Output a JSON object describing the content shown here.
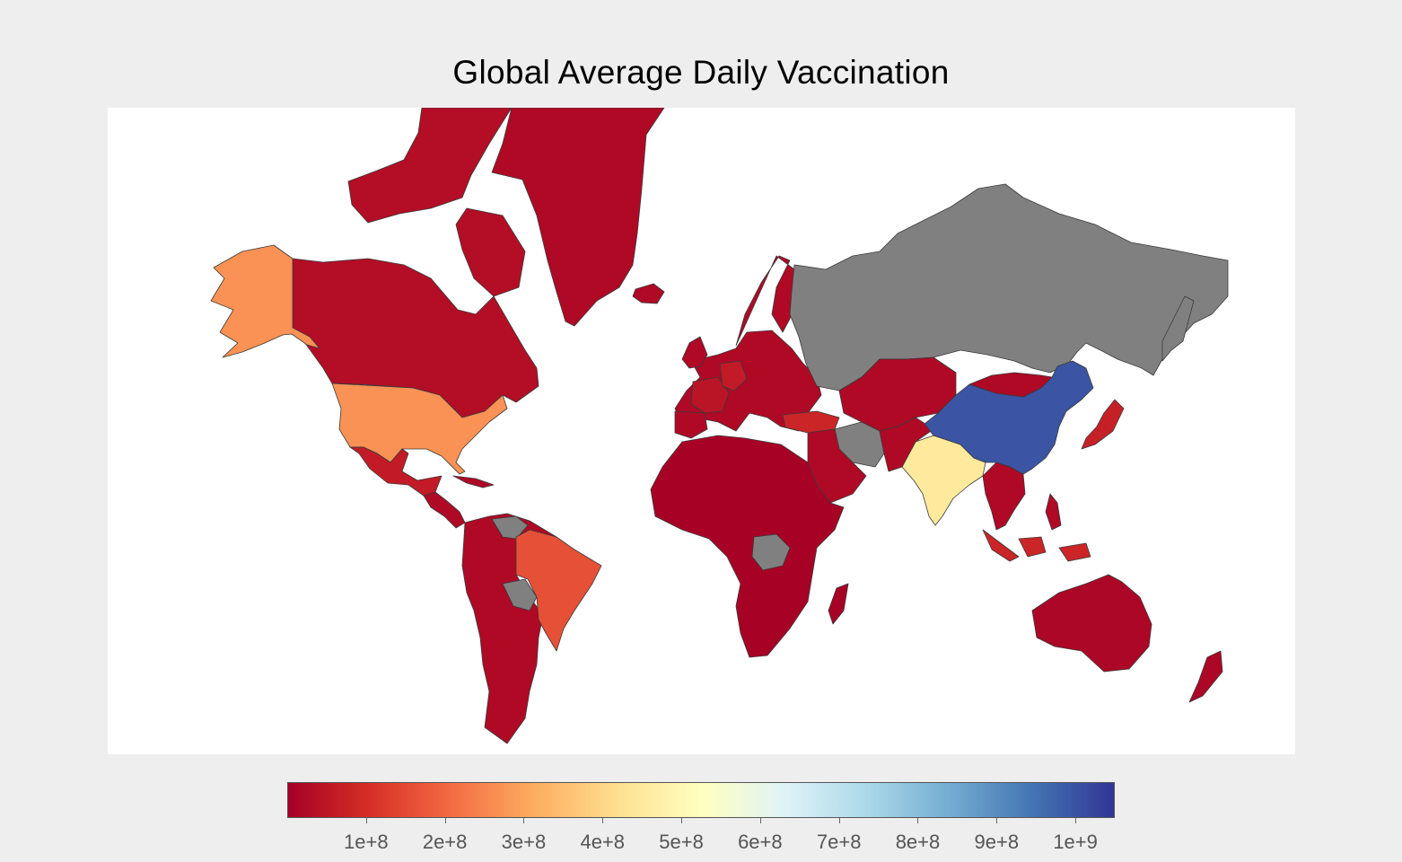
{
  "title": "Global Average Daily Vaccination",
  "colorbar": {
    "colorscale": [
      "#a50026",
      "#d73027",
      "#f46d43",
      "#fdae61",
      "#fee090",
      "#ffffbf",
      "#e0f3f8",
      "#abd9e9",
      "#74add1",
      "#4575b4",
      "#313695"
    ],
    "min": 0,
    "max": 1050000000,
    "ticks": [
      {
        "value": 100000000,
        "label": "1e+8"
      },
      {
        "value": 200000000,
        "label": "2e+8"
      },
      {
        "value": 300000000,
        "label": "3e+8"
      },
      {
        "value": 400000000,
        "label": "4e+8"
      },
      {
        "value": 500000000,
        "label": "5e+8"
      },
      {
        "value": 600000000,
        "label": "6e+8"
      },
      {
        "value": 700000000,
        "label": "7e+8"
      },
      {
        "value": 800000000,
        "label": "8e+8"
      },
      {
        "value": 900000000,
        "label": "9e+8"
      },
      {
        "value": 1000000000,
        "label": "1e+9"
      }
    ]
  },
  "colors": {
    "no_data": "#808080",
    "ocean": "#ffffff",
    "background": "#eeeeee",
    "border": "#3a3a3a"
  },
  "regions": [
    {
      "name": "China",
      "value": 1000000000
    },
    {
      "name": "India",
      "value": 450000000
    },
    {
      "name": "United States",
      "value": 270000000
    },
    {
      "name": "Alaska",
      "value": 270000000
    },
    {
      "name": "Brazil",
      "value": 160000000
    },
    {
      "name": "Indonesia",
      "value": 80000000
    },
    {
      "name": "Turkey",
      "value": 80000000
    },
    {
      "name": "Japan",
      "value": 70000000
    },
    {
      "name": "Germany",
      "value": 60000000
    },
    {
      "name": "France",
      "value": 45000000
    },
    {
      "name": "Mexico",
      "value": 60000000
    },
    {
      "name": "Canada",
      "value": 30000000
    },
    {
      "name": "Europe",
      "value": 20000000
    },
    {
      "name": "Africa",
      "value": 5000000
    },
    {
      "name": "Australia",
      "value": 15000000
    },
    {
      "name": "Russia",
      "value": null
    },
    {
      "name": "Iran",
      "value": null
    }
  ]
}
